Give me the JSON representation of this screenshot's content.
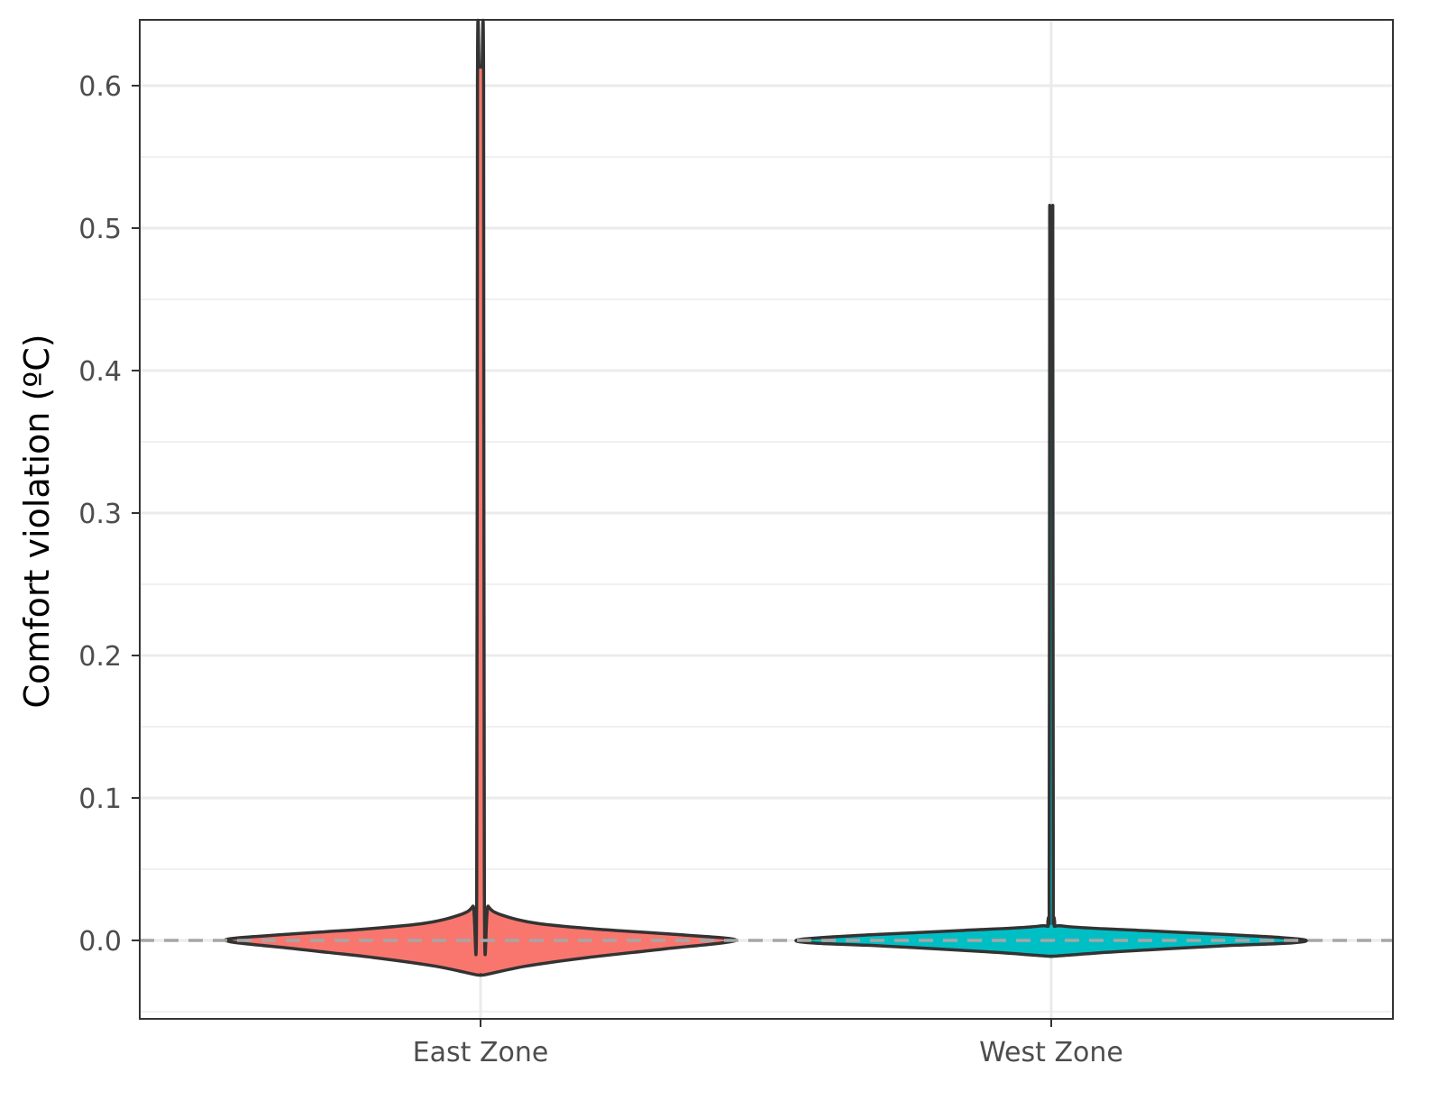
{
  "chart_data": {
    "type": "violin",
    "title": "",
    "xlabel": "",
    "ylabel": "Comfort violation (ºC)",
    "categories": [
      "East Zone",
      "West Zone"
    ],
    "ylim": [
      -0.055,
      0.645
    ],
    "yticks": [
      0.0,
      0.1,
      0.2,
      0.3,
      0.4,
      0.5,
      0.6
    ],
    "ytick_labels": [
      "0.0",
      "0.1",
      "0.2",
      "0.3",
      "0.4",
      "0.5",
      "0.6"
    ],
    "grid": true,
    "legend": "none",
    "reference_line": {
      "y": 0.0,
      "style": "dashed",
      "color": "#a6a6a6"
    },
    "series": [
      {
        "category": "East Zone",
        "color": "#f8766d",
        "min": -0.024,
        "max": 0.613,
        "density": [
          [
            -0.024,
            0.02
          ],
          [
            -0.018,
            0.18
          ],
          [
            -0.012,
            0.42
          ],
          [
            -0.006,
            0.72
          ],
          [
            0.0,
            1.0
          ],
          [
            0.004,
            0.78
          ],
          [
            0.008,
            0.45
          ],
          [
            0.012,
            0.22
          ],
          [
            0.018,
            0.08
          ],
          [
            0.024,
            0.03
          ],
          [
            0.035,
            0.015
          ],
          [
            0.6,
            0.012
          ],
          [
            0.613,
            0.0
          ]
        ]
      },
      {
        "category": "West Zone",
        "color": "#00bfc4",
        "min": -0.011,
        "max": 0.495,
        "density": [
          [
            -0.011,
            0.02
          ],
          [
            -0.008,
            0.25
          ],
          [
            -0.004,
            0.65
          ],
          [
            -0.002,
            0.92
          ],
          [
            0.0,
            1.0
          ],
          [
            0.002,
            0.9
          ],
          [
            0.004,
            0.7
          ],
          [
            0.007,
            0.35
          ],
          [
            0.01,
            0.05
          ],
          [
            0.015,
            0.012
          ],
          [
            0.06,
            0.008
          ],
          [
            0.48,
            0.006
          ],
          [
            0.495,
            0.0
          ]
        ]
      }
    ]
  }
}
